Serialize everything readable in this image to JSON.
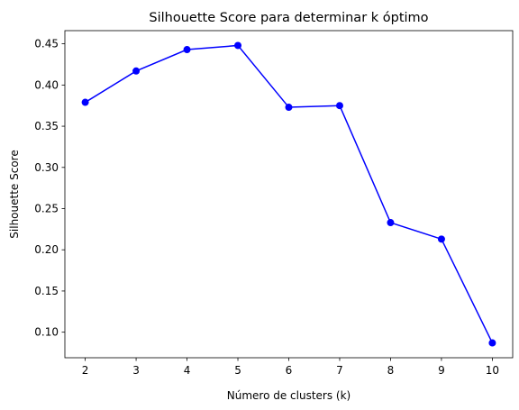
{
  "chart_data": {
    "type": "line",
    "title": "Silhouette Score para determinar k óptimo",
    "xlabel": "Número de clusters (k)",
    "ylabel": "Silhouette Score",
    "x": [
      2,
      3,
      4,
      5,
      6,
      7,
      8,
      9,
      10
    ],
    "series": [
      {
        "values": [
          0.379,
          0.417,
          0.443,
          0.448,
          0.373,
          0.375,
          0.233,
          0.213,
          0.087
        ],
        "color": "#0000ff",
        "marker": "circle"
      }
    ],
    "xlim": [
      1.6,
      10.4
    ],
    "ylim": [
      0.069,
      0.466
    ],
    "xticks": [
      "2",
      "3",
      "4",
      "5",
      "6",
      "7",
      "8",
      "9",
      "10"
    ],
    "yticks": [
      "0.10",
      "0.15",
      "0.20",
      "0.25",
      "0.30",
      "0.35",
      "0.40",
      "0.45"
    ],
    "grid": false,
    "legend": "none"
  }
}
